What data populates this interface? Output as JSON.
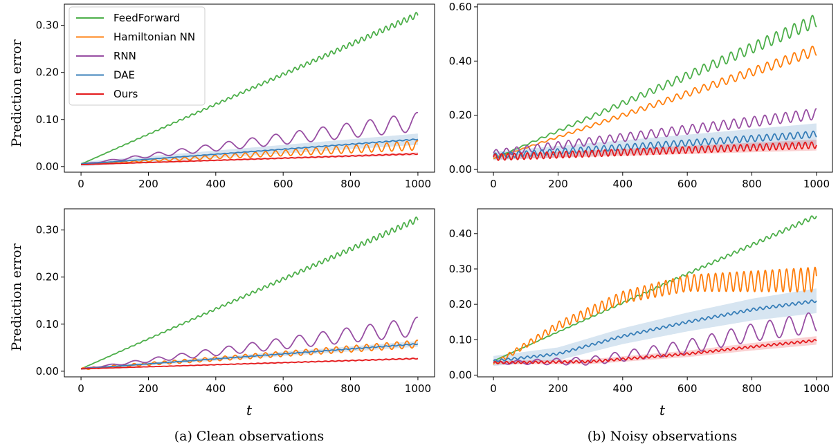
{
  "captions": {
    "left": "(a) Clean observations",
    "right": "(b) Noisy observations"
  },
  "ylabel": "Prediction error",
  "xlabel": "t",
  "legend": {
    "location": "upper left of top-left panel",
    "entries": [
      {
        "label": "FeedForward",
        "color": "#4daf4a"
      },
      {
        "label": "Hamiltonian NN",
        "color": "#ff7f0e"
      },
      {
        "label": "RNN",
        "color": "#984ea3"
      },
      {
        "label": "DAE",
        "color": "#377eb8"
      },
      {
        "label": "Ours",
        "color": "#e41a1c"
      }
    ]
  },
  "chart_data": [
    {
      "type": "line",
      "panel": "top-left",
      "xlim": [
        0,
        1000
      ],
      "ylim": [
        -0.012,
        0.345
      ],
      "xticks": [
        "0",
        "200",
        "400",
        "600",
        "800",
        "1000"
      ],
      "yticks": [
        {
          "value": 0.0,
          "label": "0.00"
        },
        {
          "value": 0.1,
          "label": "0.10"
        },
        {
          "value": 0.2,
          "label": "0.20"
        },
        {
          "value": 0.3,
          "label": "0.30"
        }
      ],
      "series": [
        {
          "name": "FeedForward",
          "color": "#4daf4a",
          "start": 0.005,
          "end": 0.323,
          "amp_start": 0.0,
          "amp_end": 0.006,
          "period": 18,
          "band": 0.0
        },
        {
          "name": "Hamiltonian NN",
          "color": "#ff7f0e",
          "start": 0.004,
          "end": 0.045,
          "amp_start": 0.0,
          "amp_end": 0.01,
          "period": 30,
          "band": 0.0
        },
        {
          "name": "RNN",
          "color": "#984ea3",
          "start": 0.005,
          "end": 0.095,
          "amp_start": 0.0,
          "amp_end": 0.02,
          "period": 70,
          "band": 0.0
        },
        {
          "name": "DAE",
          "color": "#377eb8",
          "start": 0.005,
          "end": 0.058,
          "amp_start": 0.0,
          "amp_end": 0.001,
          "period": 20,
          "band": 0.012
        },
        {
          "name": "Ours",
          "color": "#e41a1c",
          "start": 0.004,
          "end": 0.027,
          "amp_start": 0.0,
          "amp_end": 0.001,
          "period": 20,
          "band": 0.003
        }
      ]
    },
    {
      "type": "line",
      "panel": "top-right",
      "xlim": [
        0,
        1000
      ],
      "ylim": [
        -0.01,
        0.61
      ],
      "xticks": [
        "0",
        "200",
        "400",
        "600",
        "800",
        "1000"
      ],
      "yticks": [
        {
          "value": 0.0,
          "label": "0.00"
        },
        {
          "value": 0.2,
          "label": "0.20"
        },
        {
          "value": 0.4,
          "label": "0.40"
        },
        {
          "value": 0.6,
          "label": "0.60"
        }
      ],
      "series": [
        {
          "name": "FeedForward",
          "color": "#4daf4a",
          "start": 0.04,
          "end": 0.55,
          "amp_start": 0.0,
          "amp_end": 0.025,
          "period": 28,
          "band": 0.0
        },
        {
          "name": "Hamiltonian NN",
          "color": "#ff7f0e",
          "start": 0.04,
          "end": 0.44,
          "amp_start": 0.0,
          "amp_end": 0.02,
          "period": 28,
          "band": 0.0
        },
        {
          "name": "RNN",
          "color": "#984ea3",
          "start": 0.06,
          "end": 0.205,
          "amp_start": 0.012,
          "amp_end": 0.02,
          "period": 32,
          "band": 0.0
        },
        {
          "name": "DAE",
          "color": "#377eb8",
          "start": 0.05,
          "end": 0.13,
          "amp_start": 0.01,
          "amp_end": 0.012,
          "period": 24,
          "band": 0.04
        },
        {
          "name": "Ours",
          "color": "#e41a1c",
          "start": 0.045,
          "end": 0.09,
          "amp_start": 0.012,
          "amp_end": 0.012,
          "period": 20,
          "band": 0.02
        }
      ]
    },
    {
      "type": "line",
      "panel": "bottom-left",
      "xlim": [
        0,
        1000
      ],
      "ylim": [
        -0.012,
        0.345
      ],
      "xticks": [
        "0",
        "200",
        "400",
        "600",
        "800",
        "1000"
      ],
      "yticks": [
        {
          "value": 0.0,
          "label": "0.00"
        },
        {
          "value": 0.1,
          "label": "0.10"
        },
        {
          "value": 0.2,
          "label": "0.20"
        },
        {
          "value": 0.3,
          "label": "0.30"
        }
      ],
      "series": [
        {
          "name": "FeedForward",
          "color": "#4daf4a",
          "start": 0.005,
          "end": 0.323,
          "amp_start": 0.0,
          "amp_end": 0.006,
          "period": 18,
          "band": 0.0
        },
        {
          "name": "Hamiltonian NN",
          "color": "#ff7f0e",
          "start": 0.005,
          "end": 0.058,
          "amp_start": 0.002,
          "amp_end": 0.008,
          "period": 30,
          "band": 0.0
        },
        {
          "name": "RNN",
          "color": "#984ea3",
          "start": 0.005,
          "end": 0.095,
          "amp_start": 0.0,
          "amp_end": 0.02,
          "period": 70,
          "band": 0.0
        },
        {
          "name": "DAE",
          "color": "#377eb8",
          "start": 0.005,
          "end": 0.058,
          "amp_start": 0.0,
          "amp_end": 0.001,
          "period": 20,
          "band": 0.006
        },
        {
          "name": "Ours",
          "color": "#e41a1c",
          "start": 0.005,
          "end": 0.027,
          "amp_start": 0.0,
          "amp_end": 0.001,
          "period": 20,
          "band": 0.002
        }
      ]
    },
    {
      "type": "line",
      "panel": "bottom-right",
      "xlim": [
        0,
        1000
      ],
      "ylim": [
        -0.005,
        0.47
      ],
      "xticks": [
        "0",
        "200",
        "400",
        "600",
        "800",
        "1000"
      ],
      "yticks": [
        {
          "value": 0.0,
          "label": "0.00"
        },
        {
          "value": 0.1,
          "label": "0.10"
        },
        {
          "value": 0.2,
          "label": "0.20"
        },
        {
          "value": 0.3,
          "label": "0.30"
        },
        {
          "value": 0.4,
          "label": "0.40"
        }
      ],
      "series": [
        {
          "name": "FeedForward",
          "color": "#4daf4a",
          "start": 0.04,
          "end": 0.45,
          "amp_start": 0.0,
          "amp_end": 0.006,
          "period": 20,
          "band": 0.0
        },
        {
          "name": "Hamiltonian NN",
          "color": "#ff7f0e",
          "points": [
            [
              0,
              0.03
            ],
            [
              200,
              0.14
            ],
            [
              400,
              0.22
            ],
            [
              600,
              0.26
            ],
            [
              800,
              0.265
            ],
            [
              1000,
              0.27
            ]
          ],
          "amp_start": 0.005,
          "amp_end": 0.035,
          "period": 22,
          "band": 0.0
        },
        {
          "name": "RNN",
          "color": "#984ea3",
          "points": [
            [
              0,
              0.035
            ],
            [
              300,
              0.04
            ],
            [
              600,
              0.08
            ],
            [
              800,
              0.12
            ],
            [
              1000,
              0.15
            ]
          ],
          "amp_start": 0.004,
          "amp_end": 0.03,
          "period": 60,
          "band": 0.0
        },
        {
          "name": "DAE",
          "color": "#377eb8",
          "points": [
            [
              0,
              0.04
            ],
            [
              200,
              0.06
            ],
            [
              400,
              0.11
            ],
            [
              600,
              0.15
            ],
            [
              800,
              0.185
            ],
            [
              1000,
              0.21
            ]
          ],
          "amp_start": 0.003,
          "amp_end": 0.004,
          "period": 20,
          "band": 0.035
        },
        {
          "name": "Ours",
          "color": "#e41a1c",
          "points": [
            [
              0,
              0.035
            ],
            [
              300,
              0.038
            ],
            [
              600,
              0.06
            ],
            [
              800,
              0.08
            ],
            [
              1000,
              0.098
            ]
          ],
          "amp_start": 0.003,
          "amp_end": 0.003,
          "period": 18,
          "band": 0.012
        }
      ]
    }
  ]
}
